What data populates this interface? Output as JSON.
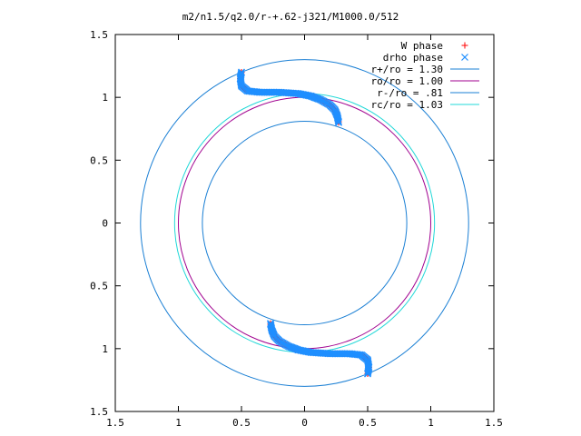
{
  "chart_data": {
    "type": "scatter",
    "title": "m2/n1.5/q2.0/r-+.62-j321/M1000.0/512",
    "xlim": [
      -1.5,
      1.5
    ],
    "ylim": [
      -1.5,
      1.5
    ],
    "xticks": [
      {
        "value": -1.5,
        "label": "1.5"
      },
      {
        "value": -1.0,
        "label": "1"
      },
      {
        "value": -0.5,
        "label": "0.5"
      },
      {
        "value": 0.0,
        "label": "0"
      },
      {
        "value": 0.5,
        "label": "0.5"
      },
      {
        "value": 1.0,
        "label": "1"
      },
      {
        "value": 1.5,
        "label": "1.5"
      }
    ],
    "yticks": [
      {
        "value": 1.5,
        "label": "1.5"
      },
      {
        "value": 1.0,
        "label": "1"
      },
      {
        "value": 0.5,
        "label": "0.5"
      },
      {
        "value": 0.0,
        "label": "0"
      },
      {
        "value": -0.5,
        "label": "0.5"
      },
      {
        "value": -1.0,
        "label": "1"
      },
      {
        "value": -1.5,
        "label": "1.5"
      }
    ],
    "grid": false,
    "legend_position": "top-right",
    "series": [
      {
        "name": "W phase",
        "kind": "points",
        "marker": "plus",
        "color": "#ff0000",
        "arms": [
          [
            [
              -0.5,
              1.2
            ],
            [
              -0.51,
              1.15
            ],
            [
              -0.5,
              1.09
            ],
            [
              -0.45,
              1.05
            ],
            [
              -0.35,
              1.04
            ],
            [
              -0.2,
              1.04
            ],
            [
              -0.05,
              1.03
            ],
            [
              0.05,
              1.01
            ],
            [
              0.13,
              0.98
            ],
            [
              0.2,
              0.94
            ],
            [
              0.24,
              0.9
            ],
            [
              0.26,
              0.85
            ],
            [
              0.27,
              0.8
            ]
          ],
          [
            [
              0.5,
              -1.2
            ],
            [
              0.51,
              -1.15
            ],
            [
              0.5,
              -1.09
            ],
            [
              0.45,
              -1.05
            ],
            [
              0.35,
              -1.04
            ],
            [
              0.2,
              -1.04
            ],
            [
              0.05,
              -1.03
            ],
            [
              -0.05,
              -1.01
            ],
            [
              -0.13,
              -0.98
            ],
            [
              -0.2,
              -0.94
            ],
            [
              -0.24,
              -0.9
            ],
            [
              -0.26,
              -0.85
            ],
            [
              -0.27,
              -0.8
            ]
          ]
        ]
      },
      {
        "name": "drho phase",
        "kind": "points",
        "marker": "cross",
        "color": "#1f8fff",
        "arms": [
          [
            [
              -0.5,
              1.2
            ],
            [
              -0.51,
              1.15
            ],
            [
              -0.5,
              1.09
            ],
            [
              -0.45,
              1.05
            ],
            [
              -0.35,
              1.04
            ],
            [
              -0.2,
              1.04
            ],
            [
              -0.05,
              1.03
            ],
            [
              0.05,
              1.01
            ],
            [
              0.13,
              0.98
            ],
            [
              0.2,
              0.94
            ],
            [
              0.24,
              0.9
            ],
            [
              0.26,
              0.85
            ],
            [
              0.27,
              0.8
            ]
          ],
          [
            [
              0.5,
              -1.2
            ],
            [
              0.51,
              -1.15
            ],
            [
              0.5,
              -1.09
            ],
            [
              0.45,
              -1.05
            ],
            [
              0.35,
              -1.04
            ],
            [
              0.2,
              -1.04
            ],
            [
              0.05,
              -1.03
            ],
            [
              -0.05,
              -1.01
            ],
            [
              -0.13,
              -0.98
            ],
            [
              -0.2,
              -0.94
            ],
            [
              -0.24,
              -0.9
            ],
            [
              -0.26,
              -0.85
            ],
            [
              -0.27,
              -0.8
            ]
          ]
        ]
      },
      {
        "name": "r+/ro = 1.30",
        "kind": "circle",
        "radius": 1.3,
        "color": "#1a7fd4"
      },
      {
        "name": "ro/ro = 1.00",
        "kind": "circle",
        "radius": 1.0,
        "color": "#a0008f"
      },
      {
        "name": "r-/ro = .81",
        "kind": "circle",
        "radius": 0.81,
        "color": "#1a7fd4"
      },
      {
        "name": "rc/ro = 1.03",
        "kind": "circle",
        "radius": 1.03,
        "color": "#22d8d8"
      }
    ]
  }
}
